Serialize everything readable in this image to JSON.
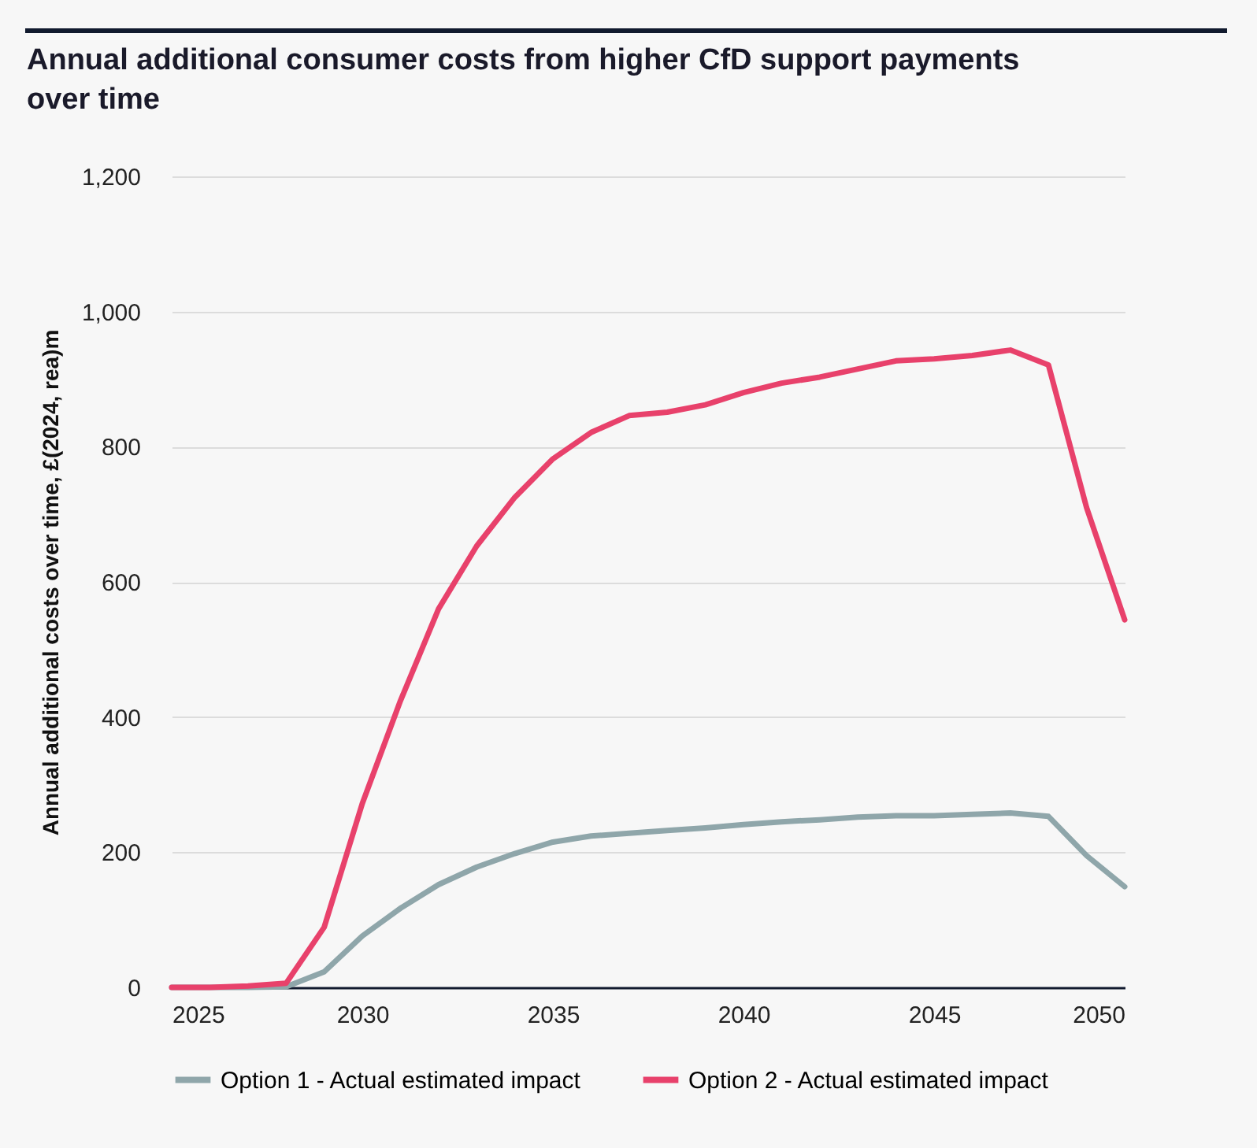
{
  "chart_data": {
    "type": "line",
    "title": "Annual additional consumer costs from higher CfD support payments over time",
    "ylabel": "Annual additional costs over time, £(2024, rea)m",
    "x": [
      2025,
      2026,
      2027,
      2028,
      2029,
      2030,
      2031,
      2032,
      2033,
      2034,
      2035,
      2036,
      2037,
      2038,
      2039,
      2040,
      2041,
      2042,
      2043,
      2044,
      2045,
      2046,
      2047,
      2048,
      2049,
      2050
    ],
    "series": [
      {
        "name": "Option 1 - Actual estimated impact",
        "color": "#8fa6aa",
        "values": [
          0,
          0,
          0,
          1,
          23,
          76,
          117,
          152,
          178,
          198,
          215,
          224,
          228,
          232,
          236,
          241,
          245,
          248,
          252,
          254,
          254,
          256,
          258,
          253,
          195,
          149
        ]
      },
      {
        "name": "Option 2 - Actual estimated impact",
        "color": "#e8416b",
        "values": [
          0,
          0,
          2,
          6,
          89,
          272,
          424,
          560,
          653,
          725,
          782,
          821,
          846,
          851,
          862,
          880,
          894,
          903,
          915,
          927,
          930,
          935,
          943,
          921,
          710,
          544
        ]
      }
    ],
    "xlim": [
      2025,
      2050
    ],
    "xticks": [
      2025,
      2030,
      2035,
      2040,
      2045,
      2050
    ],
    "ylim": [
      0,
      1200
    ],
    "yticks": [
      0,
      200,
      400,
      600,
      800,
      {
        "value": 1000,
        "label": "1,000"
      },
      {
        "value": 1200,
        "label": "1,200"
      }
    ],
    "grid": "y",
    "legend": "bottom",
    "marker": "none",
    "line_style": "solid"
  }
}
